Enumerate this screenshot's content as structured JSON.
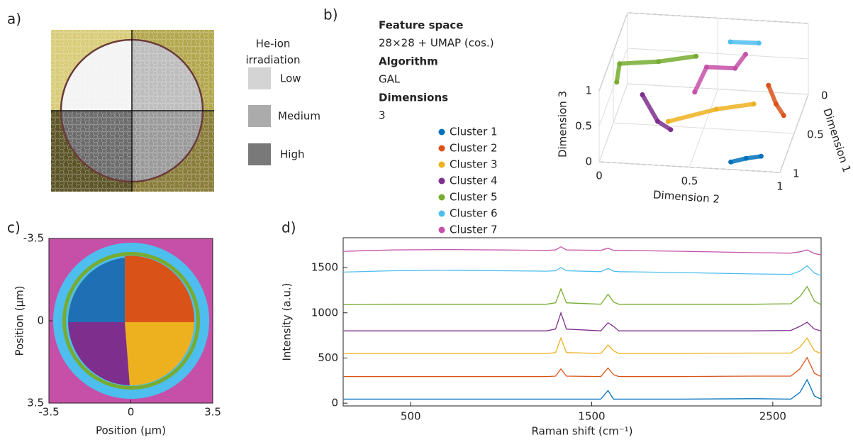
{
  "panel_labels": [
    "a)",
    "b)",
    "c)",
    "d)"
  ],
  "irradiation": {
    "title_lines": [
      "He-ion",
      "irradiation"
    ],
    "levels": [
      "Low",
      "Medium",
      "High"
    ]
  },
  "feature_info": [
    {
      "heading": "Feature space",
      "text": "28×28 + UMAP (cos.)"
    },
    {
      "heading": "Algorithm",
      "text": "GAL"
    },
    {
      "heading": "Dimensions",
      "text": "3"
    }
  ],
  "chart_data": [
    {
      "type": "scatter3d",
      "xlabel": "Dimension 1",
      "ylabel": "Dimension 2",
      "zlabel": "Dimension 3",
      "xlim": [
        0,
        1
      ],
      "ylim": [
        0,
        1
      ],
      "zlim": [
        0,
        1
      ],
      "xticks": [
        0,
        0.5,
        1
      ],
      "yticks": [
        0,
        0.5,
        1
      ],
      "zticks": [
        0,
        0.5,
        1
      ],
      "grid": true,
      "series": [
        {
          "name": "Cluster 1",
          "color": "#0072bd",
          "x": [
            0.95,
            0.92,
            0.9
          ],
          "y": [
            0.72,
            0.8,
            0.88
          ],
          "z": [
            0.05,
            0.08,
            0.1
          ]
        },
        {
          "name": "Cluster 2",
          "color": "#d95319",
          "x": [
            0.45,
            0.5,
            0.55
          ],
          "y": [
            0.85,
            0.9,
            0.95
          ],
          "z": [
            0.6,
            0.4,
            0.3
          ]
        },
        {
          "name": "Cluster 3",
          "color": "#edb120",
          "x": [
            0.8,
            0.7,
            0.65
          ],
          "y": [
            0.35,
            0.6,
            0.8
          ],
          "z": [
            0.4,
            0.5,
            0.55
          ]
        },
        {
          "name": "Cluster 4",
          "color": "#7e2f8e",
          "x": [
            0.75,
            0.85,
            0.9
          ],
          "y": [
            0.2,
            0.3,
            0.38
          ],
          "z": [
            0.7,
            0.45,
            0.4
          ]
        },
        {
          "name": "Cluster 5",
          "color": "#77ac30",
          "x": [
            0.7,
            0.6,
            0.5,
            0.45
          ],
          "y": [
            0.05,
            0.05,
            0.25,
            0.45
          ],
          "z": [
            0.8,
            0.95,
            0.9,
            0.95
          ]
        },
        {
          "name": "Cluster 6",
          "color": "#4dbeee",
          "x": [
            0.2,
            0.15
          ],
          "y": [
            0.6,
            0.75
          ],
          "z": [
            0.9,
            0.85
          ]
        },
        {
          "name": "Cluster 7",
          "color": "#c650a8",
          "x": [
            0.5,
            0.4,
            0.35,
            0.3
          ],
          "y": [
            0.45,
            0.5,
            0.65,
            0.7
          ],
          "z": [
            0.5,
            0.75,
            0.7,
            0.85
          ]
        }
      ]
    },
    {
      "type": "map",
      "xlabel": "Position (μm)",
      "ylabel": "Position (μm)",
      "xlim": [
        -3.5,
        3.5
      ],
      "ylim": [
        -3.5,
        3.5
      ],
      "y_reversed": true,
      "xticks": [
        -3.5,
        0,
        3.5
      ],
      "yticks": [
        -3.5,
        0,
        3.5
      ]
    },
    {
      "type": "line",
      "xlabel": "Raman shift (cm⁻¹)",
      "ylabel": "Intensity (a.u.)",
      "xlim": [
        127,
        2767
      ],
      "ylim": [
        -30,
        1830
      ],
      "xticks": [
        500,
        1500,
        2500
      ],
      "yticks": [
        0,
        500,
        1000,
        1500
      ],
      "x": [
        130,
        400,
        700,
        1000,
        1250,
        1300,
        1330,
        1360,
        1550,
        1590,
        1620,
        1650,
        2000,
        2400,
        2600,
        2650,
        2690,
        2730,
        2767
      ],
      "series": [
        {
          "color": "#0072bd",
          "values": [
            45,
            45,
            45,
            45,
            45,
            45,
            45,
            45,
            45,
            140,
            45,
            45,
            45,
            50,
            45,
            120,
            260,
            80,
            45
          ]
        },
        {
          "color": "#d95319",
          "values": [
            295,
            295,
            295,
            295,
            295,
            300,
            380,
            300,
            295,
            390,
            315,
            295,
            295,
            300,
            300,
            380,
            505,
            330,
            295
          ]
        },
        {
          "color": "#edb120",
          "values": [
            550,
            550,
            550,
            550,
            550,
            560,
            720,
            560,
            550,
            645,
            580,
            550,
            550,
            555,
            555,
            620,
            720,
            580,
            550
          ]
        },
        {
          "color": "#7e2f8e",
          "values": [
            800,
            800,
            800,
            800,
            800,
            820,
            1000,
            820,
            800,
            890,
            850,
            800,
            800,
            800,
            805,
            850,
            895,
            820,
            800
          ]
        },
        {
          "color": "#77ac30",
          "values": [
            1090,
            1095,
            1095,
            1095,
            1095,
            1110,
            1265,
            1110,
            1095,
            1205,
            1120,
            1095,
            1095,
            1095,
            1100,
            1180,
            1290,
            1130,
            1090
          ]
        },
        {
          "color": "#4dbeee",
          "values": [
            1450,
            1465,
            1470,
            1465,
            1460,
            1465,
            1500,
            1465,
            1455,
            1490,
            1460,
            1455,
            1445,
            1430,
            1425,
            1460,
            1520,
            1440,
            1410
          ]
        },
        {
          "color": "#c650a8",
          "values": [
            1680,
            1695,
            1700,
            1695,
            1690,
            1695,
            1730,
            1695,
            1690,
            1715,
            1690,
            1690,
            1680,
            1665,
            1660,
            1675,
            1695,
            1655,
            1640
          ]
        }
      ]
    }
  ]
}
